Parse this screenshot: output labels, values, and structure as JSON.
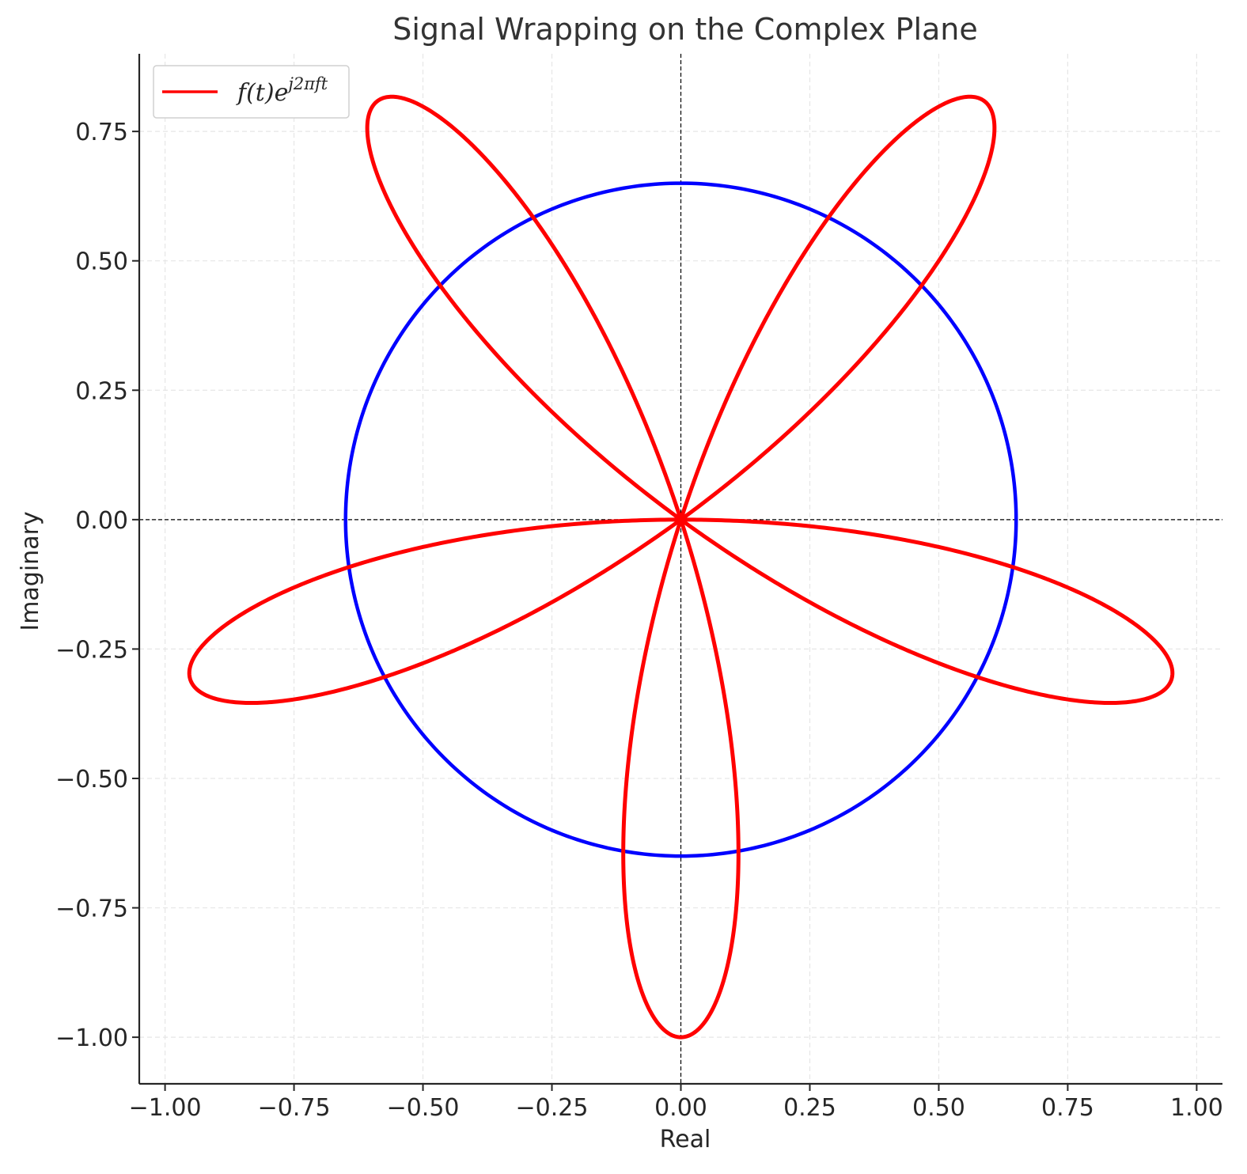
{
  "chart_data": {
    "type": "line",
    "title": "Signal Wrapping on the Complex Plane",
    "xlabel": "Real",
    "ylabel": "Imaginary",
    "xlim": [
      -1.05,
      1.05
    ],
    "ylim": [
      -1.09,
      0.9
    ],
    "xticks": [
      -1.0,
      -0.75,
      -0.5,
      -0.25,
      0.0,
      0.25,
      0.5,
      0.75,
      1.0
    ],
    "xtick_labels": [
      "−1.00",
      "−0.75",
      "−0.50",
      "−0.25",
      "0.00",
      "0.25",
      "0.50",
      "0.75",
      "1.00"
    ],
    "yticks": [
      0.75,
      0.5,
      0.25,
      0.0,
      -0.25,
      -0.5,
      -0.75,
      -1.0
    ],
    "ytick_labels": [
      "0.75",
      "0.50",
      "0.25",
      "0.00",
      "−0.25",
      "−0.50",
      "−0.75",
      "−1.00"
    ],
    "grid": true,
    "legend_position": "upper-left",
    "series": [
      {
        "name": "f(t)e^{j2πft}",
        "legend_base": "f(t)e",
        "legend_sup": "j2πft",
        "kind": "rose",
        "color": "#ff0000",
        "amplitude": 1.0,
        "petals": 5,
        "petal_tip_angle_deg": -90
      },
      {
        "kind": "circle",
        "color": "#0000ff",
        "radius": 0.65,
        "center": [
          0,
          0
        ]
      }
    ],
    "reference_lines": {
      "x": 0,
      "y": 0,
      "style": "dashed",
      "color": "#000000"
    }
  }
}
